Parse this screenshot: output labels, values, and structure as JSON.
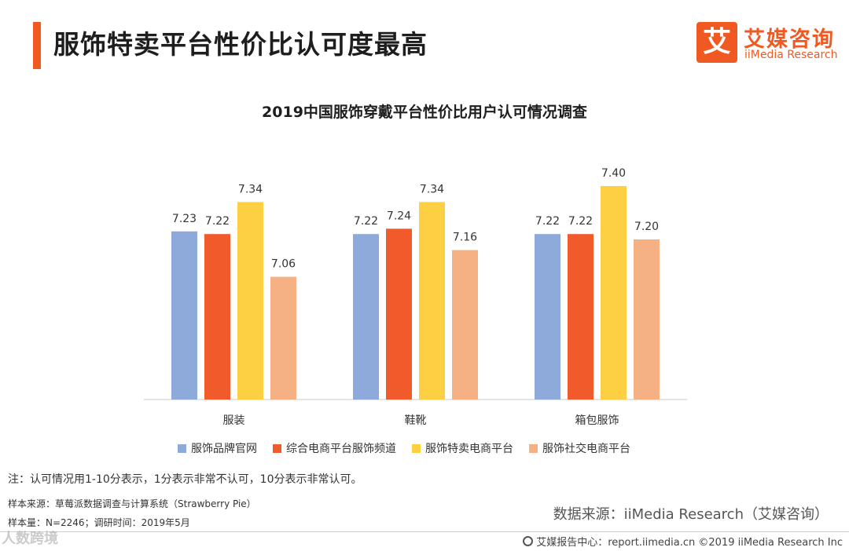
{
  "header": {
    "title": "服饰特卖平台性价比认可度最高",
    "accent_color": "#f05a22"
  },
  "logo": {
    "mark": "艾",
    "name_cn": "艾媒咨询",
    "name_en": "iiMedia Research"
  },
  "chart_data": {
    "type": "bar",
    "title": "2019中国服饰穿戴平台性价比用户认可情况调查",
    "categories": [
      "服装",
      "鞋靴",
      "箱包服饰"
    ],
    "series": [
      {
        "name": "服饰品牌官网",
        "color": "#8eaadb",
        "values": [
          7.23,
          7.22,
          7.22
        ]
      },
      {
        "name": "综合电商平台服饰频道",
        "color": "#f15a2b",
        "values": [
          7.22,
          7.24,
          7.22
        ]
      },
      {
        "name": "服饰特卖电商平台",
        "color": "#fdd043",
        "values": [
          7.34,
          7.34,
          7.4
        ]
      },
      {
        "name": "服饰社交电商平台",
        "color": "#f5b184",
        "values": [
          7.06,
          7.16,
          7.2
        ]
      }
    ],
    "value_labels": [
      [
        "7.23",
        "7.22",
        "7.22"
      ],
      [
        "7.22",
        "7.24",
        "7.22"
      ],
      [
        "7.34",
        "7.34",
        "7.40"
      ],
      [
        "7.06",
        "7.16",
        "7.20"
      ]
    ],
    "xlabel": "",
    "ylabel": "",
    "ylim": [
      6.6,
      7.5
    ],
    "legend_position": "bottom"
  },
  "notes": {
    "note": "注：认可情况用1-10分表示，1分表示非常不认可，10分表示非常认可。",
    "sample_source": "样本来源：草莓派数据调查与计算系统（Strawberry   Pie）",
    "sample_size": "样本量：N=2246；调研时间：2019年5月",
    "data_source": "数据来源：iiMedia Research（艾媒咨询）"
  },
  "footer": {
    "text": "艾媒报告中心：report.iimedia.cn  ©2019  iiMedia Research  Inc"
  },
  "watermark": "人数跨境"
}
